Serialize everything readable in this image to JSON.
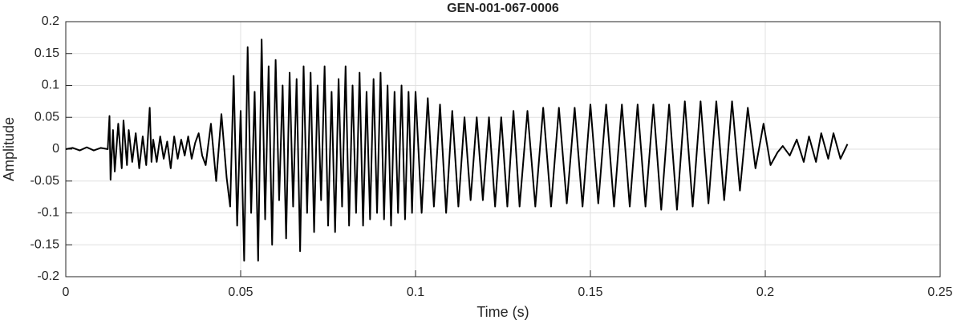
{
  "chart_data": {
    "type": "line",
    "title": "GEN-001-067-0006",
    "xlabel": "Time (s)",
    "ylabel": "Amplitude",
    "color": "#000000",
    "grid": true,
    "xlim": [
      0,
      0.25
    ],
    "xticks": [
      0,
      0.05,
      0.1,
      0.15,
      0.2,
      0.25
    ],
    "ylim": [
      -0.2,
      0.2
    ],
    "yticks": [
      -0.2,
      -0.15,
      -0.1,
      -0.05,
      0,
      0.05,
      0.1,
      0.15,
      0.2
    ],
    "x": [
      0,
      0.002,
      0.004,
      0.006,
      0.008,
      0.01,
      0.012,
      0.0125,
      0.0128,
      0.0135,
      0.014,
      0.015,
      0.016,
      0.0165,
      0.0175,
      0.018,
      0.019,
      0.02,
      0.021,
      0.022,
      0.023,
      0.024,
      0.0245,
      0.025,
      0.026,
      0.027,
      0.028,
      0.029,
      0.03,
      0.031,
      0.032,
      0.033,
      0.034,
      0.035,
      0.036,
      0.037,
      0.038,
      0.039,
      0.04,
      0.0415,
      0.043,
      0.0445,
      0.046,
      0.047,
      0.048,
      0.049,
      0.05,
      0.051,
      0.052,
      0.053,
      0.054,
      0.055,
      0.056,
      0.057,
      0.058,
      0.059,
      0.06,
      0.061,
      0.062,
      0.063,
      0.064,
      0.065,
      0.066,
      0.067,
      0.068,
      0.069,
      0.07,
      0.071,
      0.072,
      0.073,
      0.074,
      0.075,
      0.076,
      0.077,
      0.078,
      0.079,
      0.08,
      0.081,
      0.082,
      0.083,
      0.084,
      0.085,
      0.086,
      0.087,
      0.088,
      0.089,
      0.09,
      0.091,
      0.092,
      0.093,
      0.094,
      0.095,
      0.096,
      0.097,
      0.098,
      0.099,
      0.1,
      0.10175,
      0.1035,
      0.10525,
      0.107,
      0.10875,
      0.1105,
      0.11225,
      0.114,
      0.11575,
      0.1175,
      0.11925,
      0.121,
      0.12275,
      0.1245,
      0.12625,
      0.128,
      0.12975,
      0.132,
      0.13425,
      0.1365,
      0.13875,
      0.141,
      0.14325,
      0.1455,
      0.14775,
      0.15,
      0.15225,
      0.1545,
      0.15675,
      0.159,
      0.16125,
      0.1635,
      0.16575,
      0.168,
      0.17025,
      0.1725,
      0.17475,
      0.177,
      0.17925,
      0.1815,
      0.18375,
      0.186,
      0.18825,
      0.1905,
      0.19275,
      0.195,
      0.1972,
      0.1995,
      0.2015,
      0.2035,
      0.205,
      0.207,
      0.209,
      0.211,
      0.2125,
      0.2145,
      0.216,
      0.218,
      0.2195,
      0.2215,
      0.2235
    ],
    "values": [
      0,
      0.002,
      -0.002,
      0.003,
      -0.002,
      0.002,
      0,
      0.052,
      -0.048,
      0.03,
      -0.035,
      0.04,
      -0.03,
      0.045,
      -0.025,
      0.03,
      -0.02,
      0.025,
      -0.03,
      0.02,
      -0.025,
      0.065,
      -0.02,
      0.015,
      -0.02,
      0.02,
      -0.015,
      0.012,
      -0.03,
      0.02,
      -0.015,
      0.015,
      -0.01,
      0.02,
      -0.015,
      0.01,
      0.025,
      -0.01,
      -0.025,
      0.04,
      -0.05,
      0.055,
      -0.045,
      -0.09,
      0.115,
      -0.12,
      0.06,
      -0.175,
      0.16,
      -0.1,
      0.09,
      -0.175,
      0.172,
      -0.11,
      0.13,
      -0.15,
      0.14,
      -0.08,
      0.1,
      -0.14,
      0.12,
      -0.09,
      0.11,
      -0.16,
      0.13,
      -0.1,
      0.12,
      -0.13,
      0.1,
      -0.08,
      0.13,
      -0.12,
      0.09,
      -0.13,
      0.11,
      -0.09,
      0.13,
      -0.12,
      0.1,
      -0.1,
      0.12,
      -0.12,
      0.09,
      -0.11,
      0.11,
      -0.1,
      0.12,
      -0.11,
      0.1,
      -0.12,
      0.09,
      -0.1,
      0.1,
      -0.11,
      0.09,
      -0.1,
      0.09,
      -0.1,
      0.08,
      -0.09,
      0.07,
      -0.1,
      0.06,
      -0.09,
      0.05,
      -0.08,
      0.05,
      -0.08,
      0.05,
      -0.09,
      0.05,
      -0.09,
      0.06,
      -0.09,
      0.06,
      -0.09,
      0.065,
      -0.09,
      0.065,
      -0.085,
      0.065,
      -0.09,
      0.07,
      -0.085,
      0.07,
      -0.09,
      0.07,
      -0.09,
      0.07,
      -0.09,
      0.07,
      -0.095,
      0.07,
      -0.095,
      0.075,
      -0.09,
      0.075,
      -0.085,
      0.075,
      -0.08,
      0.075,
      -0.065,
      0.065,
      -0.03,
      0.04,
      -0.025,
      -0.005,
      0.005,
      -0.01,
      0.015,
      -0.02,
      0.02,
      -0.02,
      0.025,
      -0.015,
      0.025,
      -0.015,
      0.008
    ]
  }
}
